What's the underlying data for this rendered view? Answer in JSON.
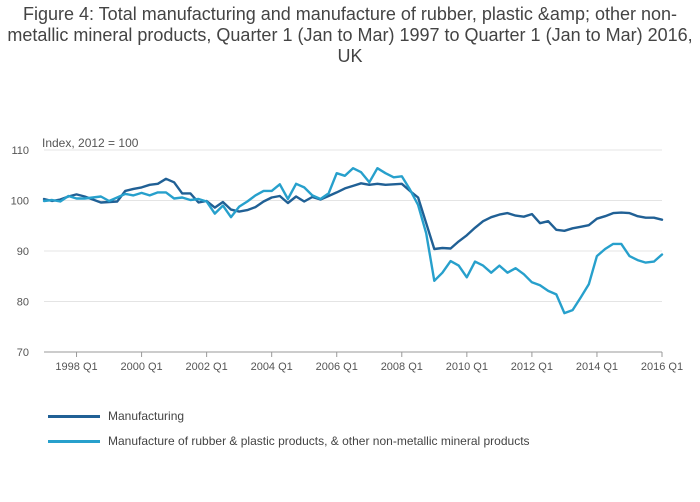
{
  "chart_data": {
    "type": "line",
    "title": "Figure 4: Total manufacturing and manufacture of rubber, plastic &amp; other non-metallic mineral products, Quarter 1 (Jan to Mar) 1997 to Quarter 1 (Jan to Mar) 2016, UK",
    "units_label": "Index, 2012 = 100",
    "ylim": [
      70,
      110
    ],
    "yticks": [
      70,
      80,
      90,
      100,
      110
    ],
    "x_tick_labels": [
      "1998 Q1",
      "2000 Q1",
      "2002 Q1",
      "2004 Q1",
      "2006 Q1",
      "2008 Q1",
      "2010 Q1",
      "2012 Q1",
      "2014 Q1",
      "2016 Q1"
    ],
    "x_tick_positions": [
      "1998 Q1",
      "2000 Q1",
      "2002 Q1",
      "2004 Q1",
      "2006 Q1",
      "2008 Q1",
      "2010 Q1",
      "2012 Q1",
      "2014 Q1",
      "2016 Q1"
    ],
    "x": [
      "1997 Q1",
      "1997 Q2",
      "1997 Q3",
      "1997 Q4",
      "1998 Q1",
      "1998 Q2",
      "1998 Q3",
      "1998 Q4",
      "1999 Q1",
      "1999 Q2",
      "1999 Q3",
      "1999 Q4",
      "2000 Q1",
      "2000 Q2",
      "2000 Q3",
      "2000 Q4",
      "2001 Q1",
      "2001 Q2",
      "2001 Q3",
      "2001 Q4",
      "2002 Q1",
      "2002 Q2",
      "2002 Q3",
      "2002 Q4",
      "2003 Q1",
      "2003 Q2",
      "2003 Q3",
      "2003 Q4",
      "2004 Q1",
      "2004 Q2",
      "2004 Q3",
      "2004 Q4",
      "2005 Q1",
      "2005 Q2",
      "2005 Q3",
      "2005 Q4",
      "2006 Q1",
      "2006 Q2",
      "2006 Q3",
      "2006 Q4",
      "2007 Q1",
      "2007 Q2",
      "2007 Q3",
      "2007 Q4",
      "2008 Q1",
      "2008 Q2",
      "2008 Q3",
      "2008 Q4",
      "2009 Q1",
      "2009 Q2",
      "2009 Q3",
      "2009 Q4",
      "2010 Q1",
      "2010 Q2",
      "2010 Q3",
      "2010 Q4",
      "2011 Q1",
      "2011 Q2",
      "2011 Q3",
      "2011 Q4",
      "2012 Q1",
      "2012 Q2",
      "2012 Q3",
      "2012 Q4",
      "2013 Q1",
      "2013 Q2",
      "2013 Q3",
      "2013 Q4",
      "2014 Q1",
      "2014 Q2",
      "2014 Q3",
      "2014 Q4",
      "2015 Q1",
      "2015 Q2",
      "2015 Q3",
      "2015 Q4",
      "2016 Q1"
    ],
    "series": [
      {
        "name": "Manufacturing",
        "color": "#206095",
        "values": [
          100.3,
          99.9,
          100.2,
          100.8,
          101.2,
          100.8,
          100.2,
          99.6,
          99.7,
          99.8,
          101.9,
          102.3,
          102.6,
          103.1,
          103.3,
          104.3,
          103.6,
          101.4,
          101.4,
          99.6,
          99.9,
          98.6,
          99.7,
          98.2,
          97.8,
          98.1,
          98.7,
          99.8,
          100.6,
          100.9,
          99.5,
          100.8,
          99.8,
          100.7,
          100.2,
          100.9,
          101.6,
          102.4,
          102.9,
          103.4,
          103.1,
          103.3,
          103.1,
          103.2,
          103.3,
          101.9,
          100.6,
          95.5,
          90.4,
          90.6,
          90.5,
          91.9,
          93.1,
          94.6,
          95.9,
          96.7,
          97.2,
          97.5,
          97.0,
          96.8,
          97.3,
          95.5,
          95.9,
          94.2,
          94.0,
          94.5,
          94.8,
          95.1,
          96.4,
          96.9,
          97.5,
          97.6,
          97.5,
          96.9,
          96.6,
          96.6,
          96.2
        ]
      },
      {
        "name": "Manufacture of rubber & plastic products, & other non-metallic mineral products",
        "color": "#27a0cc",
        "values": [
          99.9,
          100.1,
          99.8,
          100.9,
          100.4,
          100.4,
          100.6,
          100.8,
          99.9,
          100.6,
          101.3,
          101.0,
          101.5,
          101.0,
          101.6,
          101.6,
          100.4,
          100.6,
          100.1,
          100.3,
          99.8,
          97.4,
          99.0,
          96.7,
          98.8,
          99.8,
          101.0,
          101.9,
          101.9,
          103.2,
          100.3,
          103.3,
          102.6,
          101.0,
          100.3,
          101.4,
          105.4,
          104.9,
          106.4,
          105.6,
          103.6,
          106.4,
          105.4,
          104.6,
          104.8,
          102.2,
          99.1,
          93.5,
          84.1,
          85.7,
          88.0,
          87.1,
          84.8,
          87.9,
          87.1,
          85.7,
          87.1,
          85.7,
          86.6,
          85.4,
          83.8,
          83.2,
          82.1,
          81.4,
          77.7,
          78.3,
          80.8,
          83.4,
          89.0,
          90.4,
          91.4,
          91.4,
          89.0,
          88.2,
          87.7,
          87.9,
          89.3
        ]
      }
    ],
    "grid": true,
    "legend_placement": "bottom-left"
  }
}
